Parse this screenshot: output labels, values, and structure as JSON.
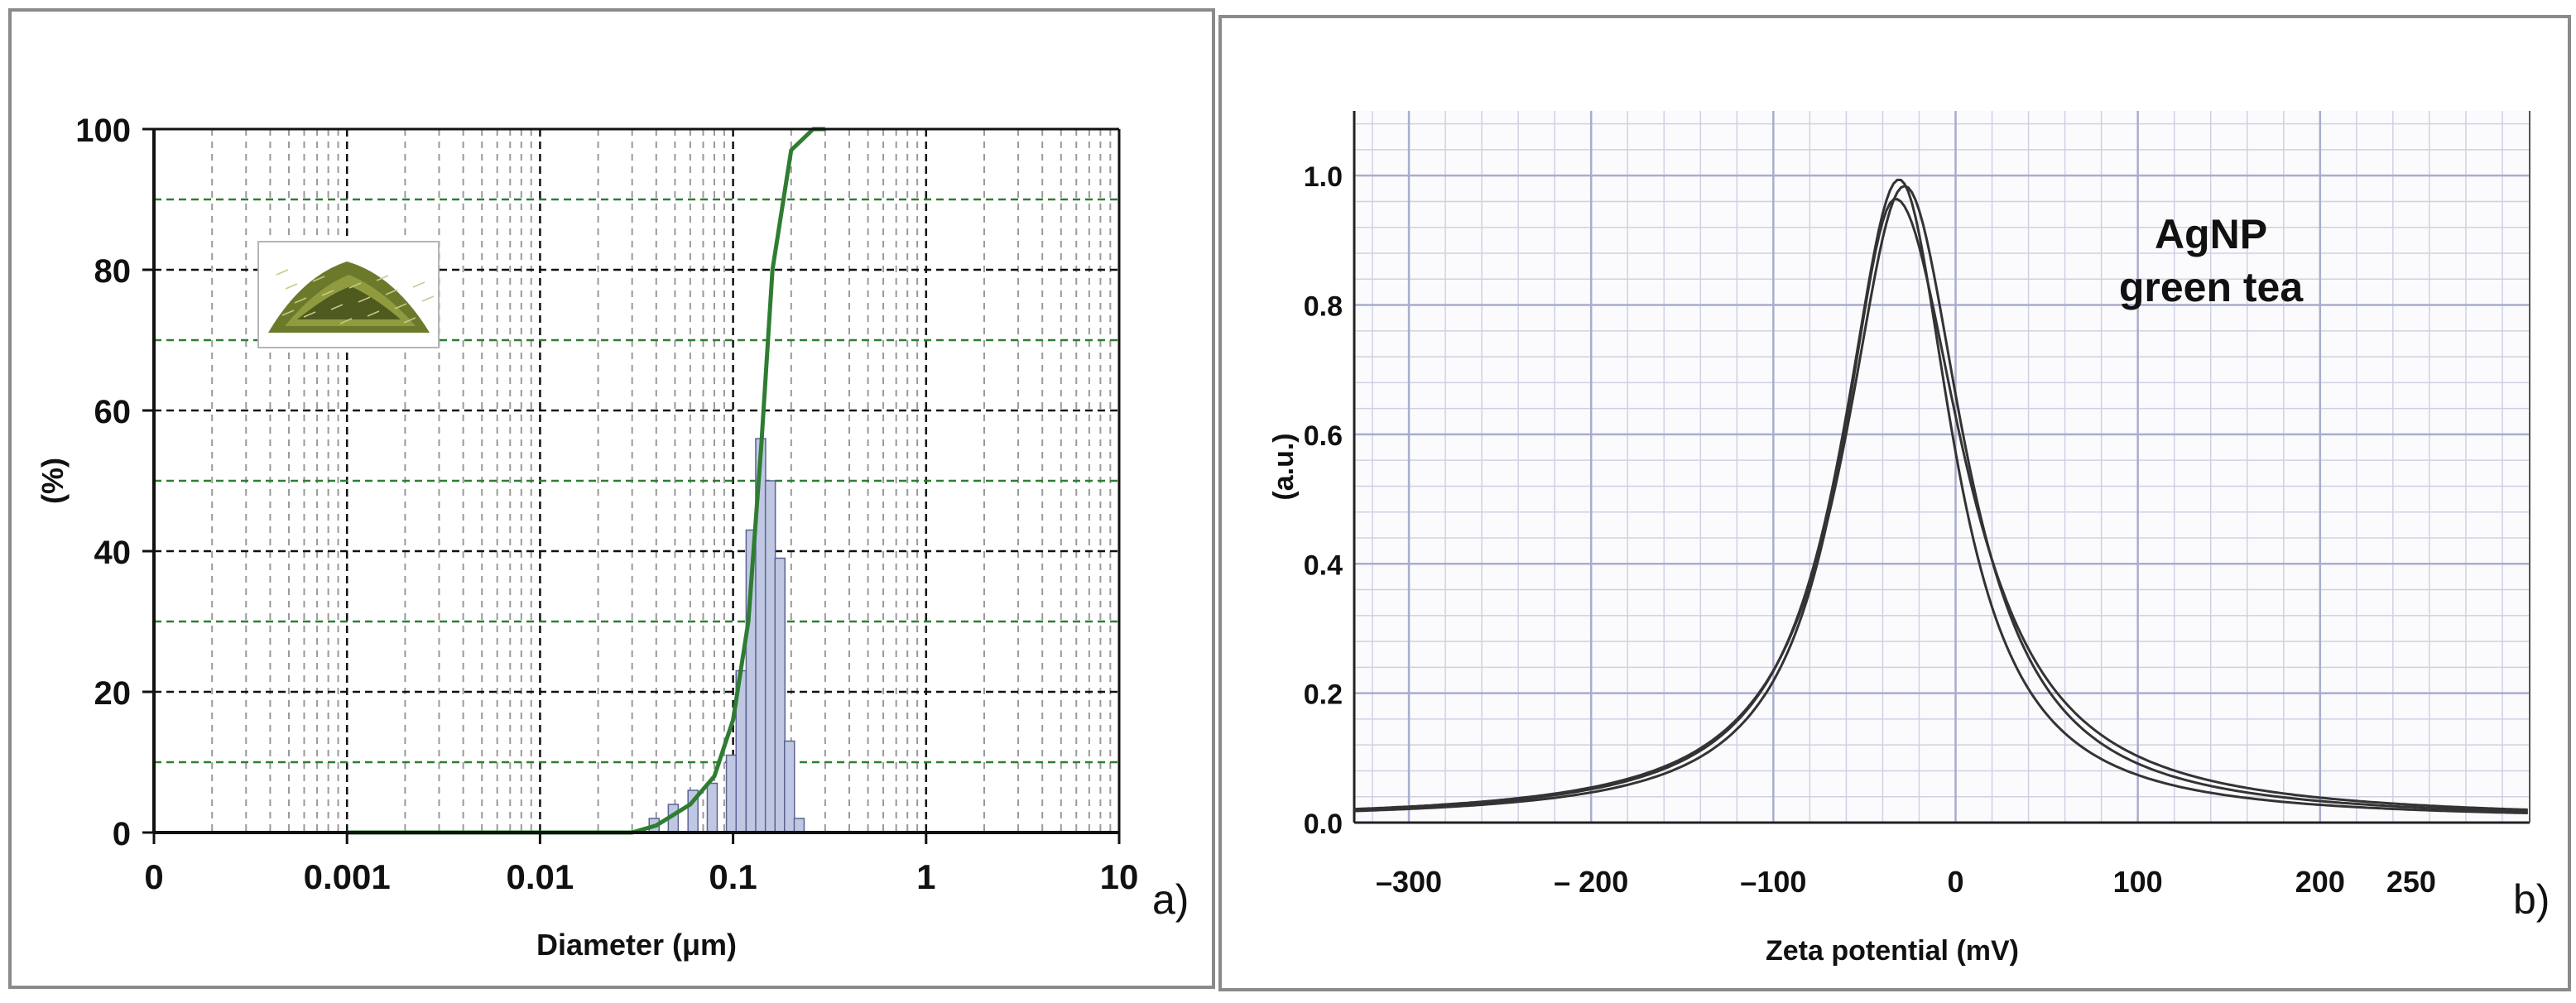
{
  "chart_data": [
    {
      "panel": "a)",
      "type": "histogram with cumulative line",
      "xlabel": "Diameter (μm)",
      "ylabel": "(%)",
      "x_scale": "log",
      "xlim": [
        0.0001,
        10
      ],
      "ylim": [
        0,
        100
      ],
      "x_tick_labels": [
        "0",
        "0.001",
        "0.01",
        "0.1",
        "1",
        "10"
      ],
      "y_tick_labels": [
        "0",
        "20",
        "40",
        "60",
        "80",
        "100"
      ],
      "inset_image": "green tea leaves",
      "bars": [
        {
          "x": 0.039,
          "value": 2
        },
        {
          "x": 0.049,
          "value": 4
        },
        {
          "x": 0.062,
          "value": 6
        },
        {
          "x": 0.078,
          "value": 7
        },
        {
          "x": 0.098,
          "value": 11
        },
        {
          "x": 0.11,
          "value": 23
        },
        {
          "x": 0.124,
          "value": 43
        },
        {
          "x": 0.139,
          "value": 56
        },
        {
          "x": 0.156,
          "value": 50
        },
        {
          "x": 0.175,
          "value": 39
        },
        {
          "x": 0.196,
          "value": 13
        },
        {
          "x": 0.22,
          "value": 2
        }
      ],
      "cumulative": {
        "color": "#2e7d32",
        "points": [
          [
            0.001,
            0
          ],
          [
            0.03,
            0
          ],
          [
            0.04,
            1
          ],
          [
            0.06,
            4
          ],
          [
            0.08,
            8
          ],
          [
            0.1,
            16
          ],
          [
            0.12,
            30
          ],
          [
            0.14,
            55
          ],
          [
            0.16,
            80
          ],
          [
            0.2,
            97
          ],
          [
            0.26,
            100
          ],
          [
            0.3,
            100
          ]
        ]
      },
      "grid": true,
      "grid_colors": {
        "major": "#111111",
        "minor": "#9a9a9a",
        "mid": "#2e7d32"
      }
    },
    {
      "panel": "b)",
      "type": "line",
      "xlabel": "Zeta potential (mV)",
      "ylabel": "(a.u.)",
      "annotation": [
        "AgNP",
        "green tea"
      ],
      "xlim": [
        -330,
        315
      ],
      "ylim": [
        0,
        1.1
      ],
      "x_tick_labels": [
        {
          "label": "–300",
          "value": -300
        },
        {
          "label": "– 200",
          "value": -200
        },
        {
          "label": "–100",
          "value": -100
        },
        {
          "label": "0",
          "value": 0
        },
        {
          "label": "100",
          "value": 100
        },
        {
          "label": "200",
          "value": 200
        },
        {
          "label": "250",
          "value": 250
        }
      ],
      "y_tick_labels": [
        "0.0",
        "0.2",
        "0.4",
        "0.6",
        "0.8",
        "1.0"
      ],
      "peak_x": -31,
      "line_color": "#333333",
      "series": [
        {
          "peak": 0.99,
          "width_left": 38,
          "width_right": 36,
          "offset": 0
        },
        {
          "peak": 0.98,
          "width_left": 40,
          "width_right": 40,
          "offset": 3
        },
        {
          "peak": 0.96,
          "width_left": 36,
          "width_right": 45,
          "offset": -2
        }
      ],
      "grid": true
    }
  ]
}
